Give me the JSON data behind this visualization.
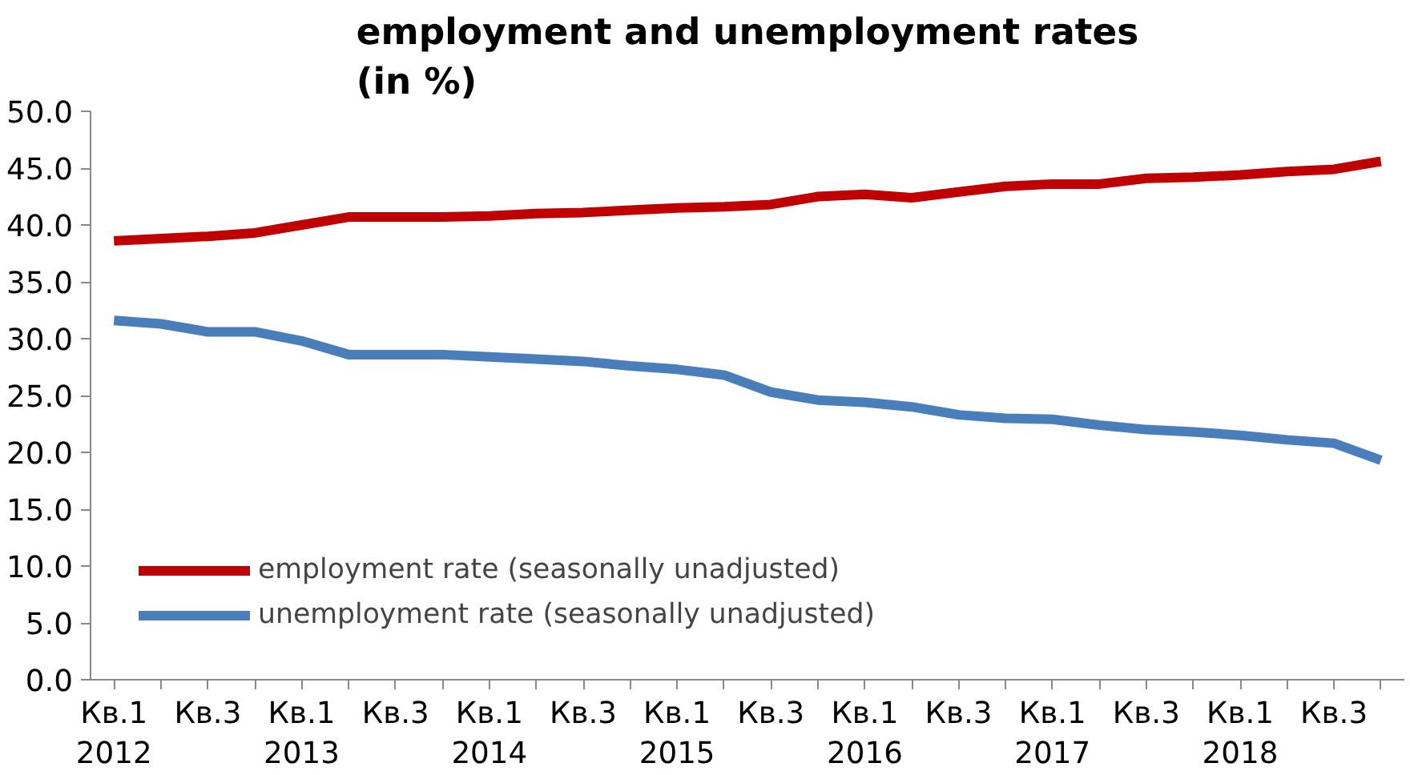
{
  "chart_data": {
    "type": "line",
    "title": "employment and unemployment rates\n(in %)",
    "categories": [
      "Кв.1\n2012",
      null,
      "Кв.3",
      null,
      "Кв.1\n2013",
      null,
      "Кв.3",
      null,
      "Кв.1\n2014",
      null,
      "Кв.3",
      null,
      "Кв.1\n2015",
      null,
      "Кв.3",
      null,
      "Кв.1\n2016",
      null,
      "Кв.3",
      null,
      "Кв.1\n2017",
      null,
      "Кв.3",
      null,
      "Кв.1\n2018",
      null,
      "Кв.3",
      null
    ],
    "series": [
      {
        "name": "employment rate (seasonally unadjusted)",
        "color": "#c00000",
        "values": [
          38.6,
          38.8,
          39.0,
          39.3,
          40.0,
          40.7,
          40.7,
          40.7,
          40.8,
          41.0,
          41.1,
          41.3,
          41.5,
          41.6,
          41.8,
          42.5,
          42.7,
          42.4,
          42.9,
          43.4,
          43.6,
          43.6,
          44.1,
          44.2,
          44.4,
          44.7,
          44.9,
          45.6
        ]
      },
      {
        "name": "unemployment rate (seasonally unadjusted)",
        "color": "#4a7ebb",
        "values": [
          31.6,
          31.3,
          30.6,
          30.6,
          29.8,
          28.6,
          28.6,
          28.6,
          28.4,
          28.2,
          28.0,
          27.6,
          27.3,
          26.8,
          25.3,
          24.6,
          24.4,
          24.0,
          23.3,
          23.0,
          22.9,
          22.4,
          22.0,
          21.8,
          21.5,
          21.1,
          20.8,
          19.3
        ]
      }
    ],
    "ylim": [
      0,
      50
    ],
    "yticks": [
      {
        "value": 0,
        "label": "0.0"
      },
      {
        "value": 5,
        "label": "5.0"
      },
      {
        "value": 10,
        "label": "10.0"
      },
      {
        "value": 15,
        "label": "15.0"
      },
      {
        "value": 20,
        "label": "20.0"
      },
      {
        "value": 25,
        "label": "25.0"
      },
      {
        "value": 30,
        "label": "30.0"
      },
      {
        "value": 35,
        "label": "35.0"
      },
      {
        "value": 40,
        "label": "40.0"
      },
      {
        "value": 45,
        "label": "45.0"
      },
      {
        "value": 50,
        "label": "50.0"
      }
    ],
    "legend": "bottom left",
    "marker": "none",
    "line_style": "solid"
  }
}
